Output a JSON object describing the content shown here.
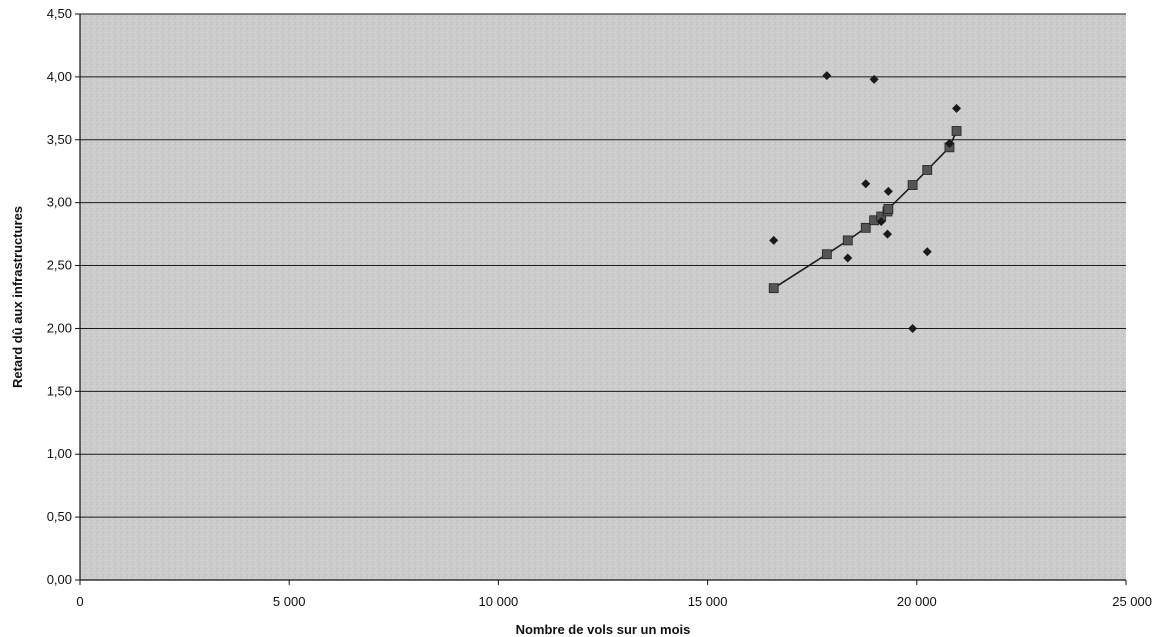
{
  "chart_data": {
    "type": "scatter",
    "title": "",
    "xlabel": "Nombre de vols sur un mois",
    "ylabel": "Retard dû aux infrastructures",
    "xlim": [
      0,
      25000
    ],
    "ylim": [
      0,
      4.5
    ],
    "x_ticks": [
      0,
      5000,
      10000,
      15000,
      20000,
      25000
    ],
    "x_tick_labels": [
      "0",
      "5 000",
      "10 000",
      "15 000",
      "20 000",
      "25 000"
    ],
    "y_ticks": [
      0,
      0.5,
      1.0,
      1.5,
      2.0,
      2.5,
      3.0,
      3.5,
      4.0,
      4.5
    ],
    "y_tick_labels": [
      "0,00",
      "0,50",
      "1,00",
      "1,50",
      "2,00",
      "2,50",
      "3,00",
      "3,50",
      "4,00",
      "4,50"
    ],
    "grid": "horizontal",
    "legend": "none",
    "colors": {
      "observed": "#1a1a1a",
      "fitted": "#555555",
      "plot_bg": "#cfcfcf",
      "gridline": "#1a1a1a"
    },
    "series": [
      {
        "marker": "diamond",
        "points": [
          [
            16580,
            2.7
          ],
          [
            17850,
            4.01
          ],
          [
            18780,
            3.15
          ],
          [
            18980,
            3.98
          ],
          [
            18350,
            2.56
          ],
          [
            19150,
            2.85
          ],
          [
            19300,
            2.75
          ],
          [
            19320,
            3.09
          ],
          [
            19900,
            2.0
          ],
          [
            20250,
            2.61
          ],
          [
            20780,
            3.47
          ],
          [
            20950,
            3.75
          ]
        ]
      },
      {
        "marker": "square",
        "line": true,
        "points": [
          [
            16580,
            2.32
          ],
          [
            17850,
            2.59
          ],
          [
            18350,
            2.7
          ],
          [
            18780,
            2.8
          ],
          [
            18980,
            2.86
          ],
          [
            19150,
            2.89
          ],
          [
            19300,
            2.93
          ],
          [
            19320,
            2.95
          ],
          [
            19900,
            3.14
          ],
          [
            20250,
            3.26
          ],
          [
            20780,
            3.44
          ],
          [
            20950,
            3.57
          ]
        ]
      }
    ]
  }
}
